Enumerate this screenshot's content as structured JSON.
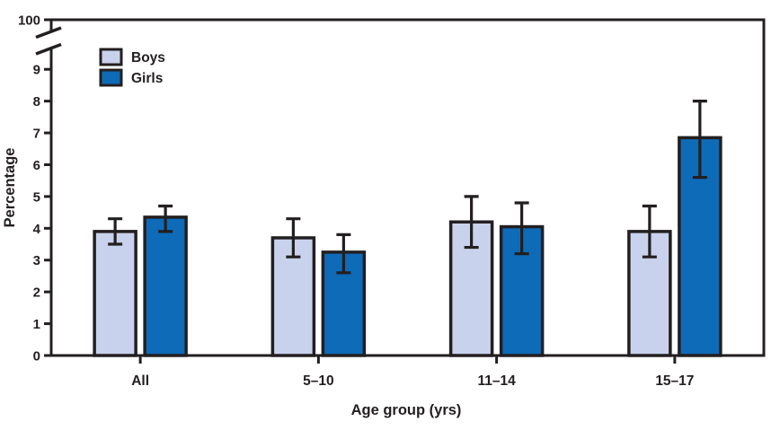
{
  "chart_data": {
    "type": "bar",
    "title": "",
    "xlabel": "Age group (yrs)",
    "ylabel": "Percentage",
    "categories": [
      "All",
      "5–10",
      "11–14",
      "15–17"
    ],
    "series": [
      {
        "name": "Boys",
        "color": "#c9d2ec",
        "values": [
          3.9,
          3.7,
          4.2,
          3.9
        ],
        "ci_low": [
          3.5,
          3.1,
          3.4,
          3.1
        ],
        "ci_high": [
          4.3,
          4.3,
          5.0,
          4.7
        ]
      },
      {
        "name": "Girls",
        "color": "#0e6bb8",
        "values": [
          4.35,
          3.25,
          4.05,
          6.85
        ],
        "ci_low": [
          3.9,
          2.6,
          3.2,
          5.6
        ],
        "ci_high": [
          4.7,
          3.8,
          4.8,
          8.0
        ]
      }
    ],
    "y_axis": {
      "ticks": [
        0,
        1,
        2,
        3,
        4,
        5,
        6,
        7,
        8,
        9
      ],
      "top_tick_label": "100",
      "axis_break": true
    },
    "legend": {
      "position": "top-left",
      "entries": [
        "Boys",
        "Girls"
      ]
    },
    "error_bars": true,
    "grid": false,
    "axis_color": "#231f20",
    "background_color": "#ffffff"
  }
}
